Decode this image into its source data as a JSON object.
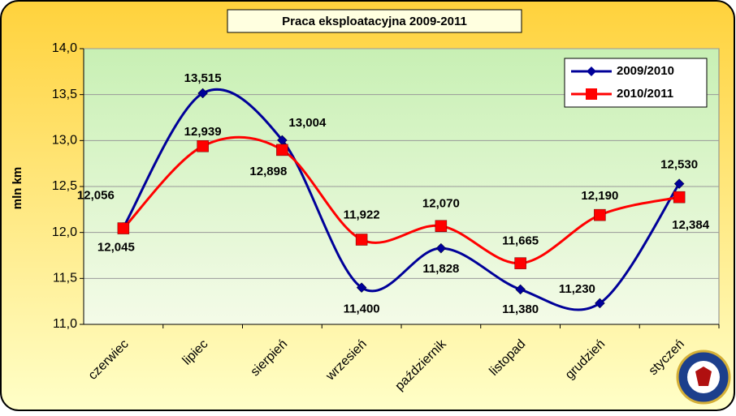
{
  "chart_data": {
    "type": "line",
    "title": "Praca eksploatacyjna 2009-2011",
    "y_label": "mln km",
    "categories": [
      "czerwiec",
      "lipiec",
      "sierpień",
      "wrzesień",
      "październik",
      "listopad",
      "grudzień",
      "styczeń"
    ],
    "series": [
      {
        "name": "2009/2010",
        "color": "#000099",
        "marker": "diamond",
        "values": [
          12.056,
          13.515,
          13.004,
          11.4,
          11.828,
          11.38,
          11.23,
          12.53
        ],
        "value_labels": [
          "12,056",
          "13,515",
          "13,004",
          "11,400",
          "11,828",
          "11,380",
          "11,230",
          "12,530"
        ]
      },
      {
        "name": "2010/2011",
        "color": "#ff0000",
        "marker": "square",
        "values": [
          12.045,
          12.939,
          12.898,
          11.922,
          12.07,
          11.665,
          12.19,
          12.384
        ],
        "value_labels": [
          "12,045",
          "12,939",
          "12,898",
          "11,922",
          "12,070",
          "11,665",
          "12,190",
          "12,384"
        ]
      }
    ],
    "ylim": [
      11,
      14
    ],
    "yticks": [
      {
        "value": 11,
        "label": "11,0"
      },
      {
        "value": 11.5,
        "label": "11,5"
      },
      {
        "value": 12,
        "label": "12,0"
      },
      {
        "value": 12.5,
        "label": "12,5"
      },
      {
        "value": 13,
        "label": "13,0"
      },
      {
        "value": 13.5,
        "label": "13,5"
      },
      {
        "value": 14,
        "label": "14,0"
      }
    ],
    "grid": true,
    "smooth": true,
    "legend": "upper right"
  }
}
